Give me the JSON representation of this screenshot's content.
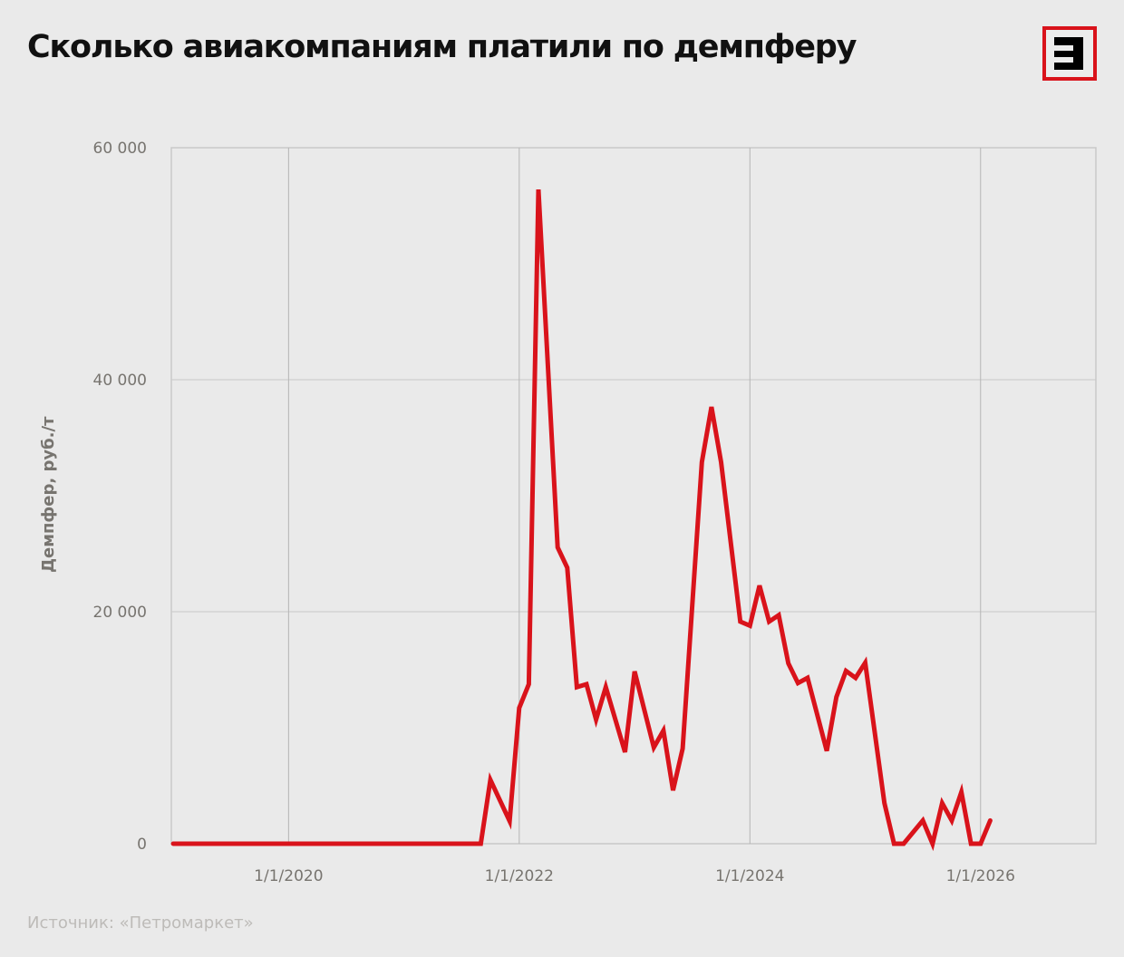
{
  "header": {
    "title": "Сколько авиакомпаниям платили по демпферу",
    "logo_icon": "kommersant-e-logo",
    "logo_color": "#d9131b"
  },
  "footer": {
    "source": "Источник: «Петромаркет»"
  },
  "chart_data": {
    "type": "line",
    "title": "Сколько авиакомпаниям платили по демпферу",
    "xlabel": "",
    "ylabel": "Демпфер, руб./т",
    "ylim": [
      0,
      60000
    ],
    "xlim": [
      "2019-01",
      "2027-01"
    ],
    "grid": true,
    "legend": "none",
    "y_ticks": [
      {
        "value": 0,
        "label": "0"
      },
      {
        "value": 20000,
        "label": "20 000"
      },
      {
        "value": 40000,
        "label": "40 000"
      },
      {
        "value": 60000,
        "label": "60 000"
      }
    ],
    "x_ticks": [
      {
        "date": "2020-01",
        "label": "1/1/2020"
      },
      {
        "date": "2022-01",
        "label": "1/1/2022"
      },
      {
        "date": "2024-01",
        "label": "1/1/2024"
      },
      {
        "date": "2026-01",
        "label": "1/1/2026"
      }
    ],
    "series": [
      {
        "name": "Демпфер",
        "color": "#d9131b",
        "x": [
          "2019-01",
          "2021-09",
          "2021-10",
          "2021-12",
          "2022-01",
          "2022-02",
          "2022-03",
          "2022-05",
          "2022-06",
          "2022-07",
          "2022-08",
          "2022-09",
          "2022-10",
          "2022-12",
          "2023-01",
          "2023-03",
          "2023-04",
          "2023-05",
          "2023-06",
          "2023-08",
          "2023-09",
          "2023-10",
          "2023-12",
          "2024-01",
          "2024-02",
          "2024-03",
          "2024-04",
          "2024-05",
          "2024-06",
          "2024-07",
          "2024-09",
          "2024-10",
          "2024-11",
          "2024-12",
          "2025-01",
          "2025-03",
          "2025-04",
          "2025-05",
          "2025-07",
          "2025-08",
          "2025-09",
          "2025-10",
          "2025-11",
          "2025-12",
          "2026-01",
          "2026-02"
        ],
        "values": [
          0,
          0,
          5500,
          1950,
          11700,
          13750,
          56400,
          25550,
          23800,
          13500,
          13750,
          10700,
          13500,
          7900,
          14850,
          8300,
          9750,
          4600,
          8200,
          32900,
          37650,
          32900,
          19150,
          18800,
          22250,
          19150,
          19700,
          15550,
          13850,
          14300,
          8000,
          12650,
          14900,
          14300,
          15600,
          3500,
          0,
          0,
          2000,
          0,
          3500,
          2000,
          4450,
          0,
          0,
          2000
        ]
      }
    ]
  }
}
